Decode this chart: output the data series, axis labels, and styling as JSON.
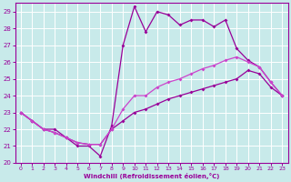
{
  "xlabel": "Windchill (Refroidissement éolien,°C)",
  "xlim": [
    -0.5,
    23.5
  ],
  "ylim": [
    20,
    29.5
  ],
  "yticks": [
    20,
    21,
    22,
    23,
    24,
    25,
    26,
    27,
    28,
    29
  ],
  "xticks": [
    0,
    1,
    2,
    3,
    4,
    5,
    6,
    7,
    8,
    9,
    10,
    11,
    12,
    13,
    14,
    15,
    16,
    17,
    18,
    19,
    20,
    21,
    22,
    23
  ],
  "background_color": "#c8eaea",
  "grid_color": "#b0d8d8",
  "line_color1": "#990099",
  "line_color2": "#cc44cc",
  "upper_x": [
    0,
    1,
    2,
    3,
    4,
    5,
    6,
    7,
    8,
    9,
    10,
    11,
    12,
    13,
    14,
    15,
    16,
    17,
    18,
    19,
    20,
    21,
    22,
    23
  ],
  "upper_y": [
    23.0,
    22.5,
    22.0,
    22.0,
    21.5,
    21.0,
    21.0,
    20.4,
    22.2,
    27.0,
    29.3,
    27.8,
    29.0,
    28.8,
    28.2,
    28.5,
    28.5,
    28.1,
    28.5,
    26.8,
    26.1,
    25.7,
    24.8,
    24.0
  ],
  "lower_x": [
    0,
    1,
    2,
    3,
    4,
    5,
    6,
    7,
    8,
    9,
    10,
    11,
    12,
    13,
    14,
    15,
    16,
    17,
    18,
    19,
    20,
    21,
    22,
    23
  ],
  "lower_y": [
    23.0,
    22.5,
    22.0,
    21.8,
    21.5,
    21.2,
    21.1,
    21.1,
    22.0,
    22.5,
    23.0,
    23.2,
    23.5,
    23.8,
    24.0,
    24.2,
    24.4,
    24.6,
    24.8,
    25.0,
    25.5,
    25.3,
    24.5,
    24.0
  ],
  "mid_x": [
    0,
    1,
    2,
    3,
    4,
    5,
    6,
    7,
    8,
    9,
    10,
    11,
    12,
    13,
    14,
    15,
    16,
    17,
    18,
    19,
    20,
    21,
    22,
    23
  ],
  "mid_y": [
    23.0,
    22.5,
    22.0,
    21.8,
    21.5,
    21.2,
    21.1,
    21.1,
    22.0,
    23.2,
    24.0,
    24.0,
    24.5,
    24.8,
    25.0,
    25.3,
    25.6,
    25.8,
    26.1,
    26.3,
    26.0,
    25.7,
    24.8,
    24.0
  ]
}
